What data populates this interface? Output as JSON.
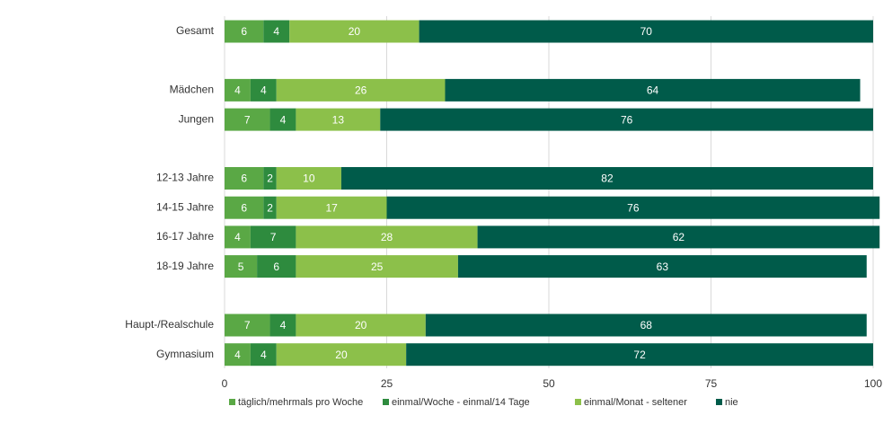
{
  "chart_data": {
    "type": "stacked-bar-horizontal",
    "categories": [
      "Gesamt",
      null,
      "Mädchen",
      "Jungen",
      null,
      "12-13 Jahre",
      "14-15 Jahre",
      "16-17 Jahre",
      "18-19 Jahre",
      null,
      "Haupt-/Realschule",
      "Gymnasium"
    ],
    "series": [
      {
        "name": "täglich/mehrmals pro Woche",
        "color": "#5aa845",
        "values": [
          6,
          null,
          4,
          7,
          null,
          6,
          6,
          4,
          5,
          null,
          7,
          4
        ]
      },
      {
        "name": "einmal/Woche - einmal/14 Tage",
        "color": "#2e8b3e",
        "values": [
          4,
          null,
          4,
          4,
          null,
          2,
          2,
          7,
          6,
          null,
          4,
          4
        ]
      },
      {
        "name": "einmal/Monat - seltener",
        "color": "#8cc04a",
        "values": [
          20,
          null,
          26,
          13,
          null,
          10,
          17,
          28,
          25,
          null,
          20,
          20
        ]
      },
      {
        "name": "nie",
        "color": "#005b4a",
        "values": [
          70,
          null,
          64,
          76,
          null,
          82,
          76,
          62,
          63,
          null,
          68,
          72
        ]
      }
    ],
    "xlim": [
      0,
      100
    ],
    "xticks": [
      0,
      25,
      50,
      75,
      100
    ],
    "grid": true,
    "legend": "bottom"
  }
}
